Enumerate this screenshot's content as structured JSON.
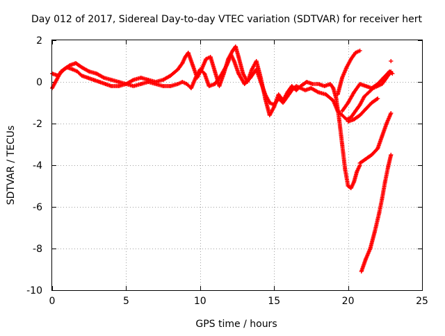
{
  "chart_data": {
    "type": "scatter",
    "title": "Day 012 of 2017, Sidereal Day-to-day VTEC variation (SDTVAR) for receiver hert",
    "xlabel": "GPS time / hours",
    "ylabel": "SDTVAR / TECUs",
    "xlim": [
      0,
      25
    ],
    "ylim": [
      -10,
      2
    ],
    "xticks": [
      "0",
      "5",
      "10",
      "15",
      "20",
      "25"
    ],
    "yticks": [
      "2",
      "0",
      "-2",
      "-4",
      "-6",
      "-8",
      "-10"
    ],
    "grid": true,
    "marker": "plus",
    "color": "#ff0000",
    "series": [
      {
        "x": [
          0.0,
          0.3,
          0.6,
          1.0,
          1.4,
          1.7,
          2.0,
          2.4,
          2.8,
          3.2,
          3.6,
          4.0,
          4.5,
          5.0,
          5.5,
          6.0,
          6.5,
          7.0,
          7.5,
          8.0,
          8.5,
          8.8,
          9.1,
          9.4,
          9.7,
          10.0,
          10.3,
          10.6,
          11.0,
          11.4,
          11.8,
          12.1,
          12.3,
          12.6,
          13.0,
          13.4,
          13.8,
          14.1,
          14.4,
          14.7,
          15.0,
          15.3,
          15.6,
          15.9,
          16.2,
          16.5,
          16.8,
          17.1,
          17.5,
          18.0,
          18.5,
          19.0,
          19.3,
          19.6,
          19.9,
          20.2,
          20.5,
          20.8,
          21.1,
          21.4,
          21.7,
          22.0,
          22.3,
          22.6,
          22.9
        ],
        "y": [
          -0.3,
          0.1,
          0.5,
          0.7,
          0.6,
          0.5,
          0.3,
          0.2,
          0.1,
          0.0,
          -0.1,
          -0.2,
          -0.2,
          -0.1,
          -0.2,
          -0.1,
          0.0,
          -0.1,
          -0.2,
          -0.2,
          -0.1,
          0.0,
          -0.1,
          -0.3,
          0.2,
          0.6,
          0.4,
          -0.2,
          -0.1,
          0.3,
          0.8,
          1.3,
          1.0,
          0.4,
          -0.1,
          0.2,
          0.6,
          0.0,
          -0.6,
          -1.0,
          -1.1,
          -0.8,
          -1.0,
          -0.7,
          -0.4,
          -0.2,
          -0.3,
          -0.4,
          -0.3,
          -0.5,
          -0.6,
          -0.9,
          -1.4,
          -1.6,
          -1.8,
          -1.7,
          -1.4,
          -1.1,
          -0.7,
          -0.5,
          -0.3,
          -0.2,
          -0.1,
          0.2,
          0.5
        ]
      },
      {
        "x": [
          0.0,
          0.4,
          0.8,
          1.2,
          1.6,
          2.0,
          2.5,
          3.0,
          3.5,
          4.0,
          4.5,
          5.0,
          5.5,
          6.0,
          6.5,
          7.0,
          7.5,
          8.0,
          8.5,
          8.8,
          9.0,
          9.2,
          9.5,
          9.8,
          10.1,
          10.4,
          10.7,
          11.0,
          11.3,
          11.6,
          11.9,
          12.2,
          12.4,
          12.6,
          12.9,
          13.2,
          13.5,
          13.8,
          14.1,
          14.4,
          14.7,
          15.0,
          15.3,
          15.6,
          15.9,
          16.2,
          16.5,
          16.8,
          17.2,
          17.6,
          18.0,
          18.4,
          18.8,
          19.0,
          19.2,
          19.4,
          19.6,
          19.8,
          20.0,
          20.2,
          20.4,
          20.6,
          20.8
        ],
        "y": [
          0.4,
          0.3,
          0.6,
          0.8,
          0.9,
          0.7,
          0.5,
          0.4,
          0.2,
          0.1,
          0.0,
          -0.1,
          0.1,
          0.2,
          0.1,
          0.0,
          0.1,
          0.3,
          0.6,
          0.9,
          1.2,
          1.4,
          0.8,
          0.2,
          0.6,
          1.1,
          1.2,
          0.5,
          -0.2,
          0.4,
          1.1,
          1.5,
          1.7,
          1.2,
          0.4,
          0.0,
          0.6,
          1.0,
          0.2,
          -0.8,
          -1.6,
          -1.2,
          -0.6,
          -0.9,
          -0.5,
          -0.2,
          -0.4,
          -0.2,
          0.0,
          -0.1,
          -0.1,
          -0.2,
          -0.1,
          -0.3,
          -0.8,
          -1.8,
          -3.0,
          -4.2,
          -5.0,
          -5.1,
          -4.8,
          -4.3,
          -4.0
        ]
      },
      {
        "x": [
          19.3,
          19.6,
          19.9,
          20.2,
          20.5,
          20.8
        ],
        "y": [
          -0.6,
          0.2,
          0.7,
          1.1,
          1.4,
          1.5
        ]
      },
      {
        "x": [
          19.6,
          20.0,
          20.4,
          20.8,
          21.2,
          21.6,
          22.0,
          22.4,
          22.8,
          23.0
        ],
        "y": [
          -1.4,
          -1.0,
          -0.5,
          -0.1,
          -0.2,
          -0.3,
          -0.1,
          0.2,
          0.5,
          0.4
        ]
      },
      {
        "x": [
          20.0,
          20.4,
          20.8,
          21.2,
          21.6,
          22.0
        ],
        "y": [
          -1.9,
          -1.8,
          -1.6,
          -1.3,
          -1.0,
          -0.8
        ]
      },
      {
        "x": [
          20.8,
          21.2,
          21.6,
          22.0,
          22.3,
          22.6,
          22.9
        ],
        "y": [
          -3.9,
          -3.7,
          -3.5,
          -3.2,
          -2.6,
          -2.0,
          -1.5
        ]
      },
      {
        "x": [
          20.9,
          21.2,
          21.5,
          21.8,
          22.1,
          22.3,
          22.5,
          22.7,
          22.9
        ],
        "y": [
          -9.1,
          -8.5,
          -8.0,
          -7.2,
          -6.3,
          -5.6,
          -4.8,
          -4.1,
          -3.5
        ]
      },
      {
        "x": [
          22.9
        ],
        "y": [
          1.0
        ]
      }
    ]
  }
}
